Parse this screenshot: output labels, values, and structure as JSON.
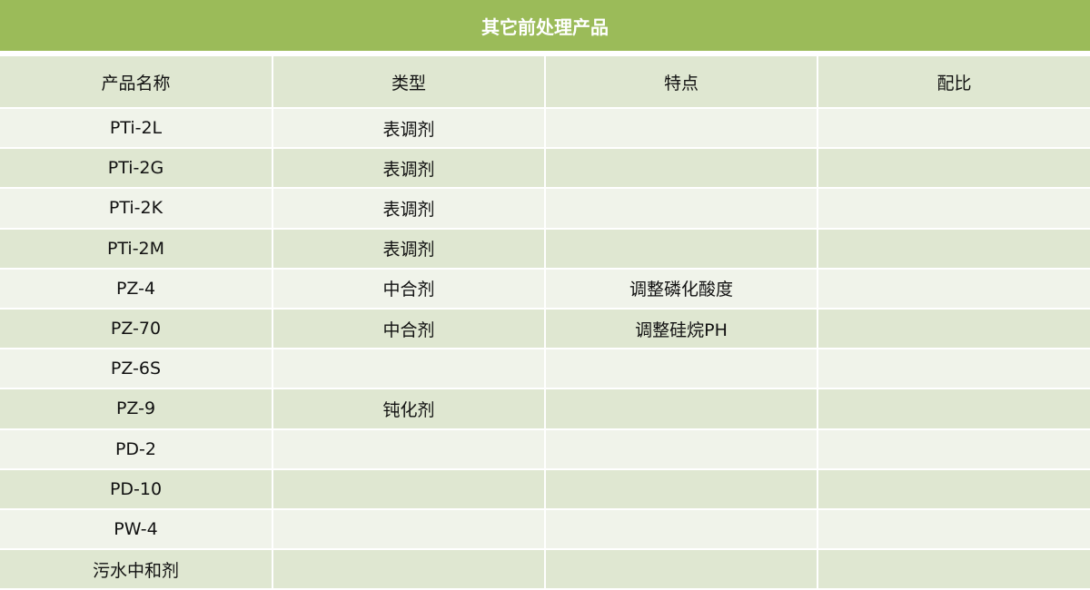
{
  "title": "其它前处理产品",
  "colors": {
    "title_bg": "#9bbb59",
    "header_bg": "#dfe7d1",
    "row_light": "#f0f3ea",
    "row_dark": "#dfe7d1"
  },
  "columns": [
    "产品名称",
    "类型",
    "特点",
    "配比"
  ],
  "rows": [
    [
      "PTi-2L",
      "表调剂",
      "",
      ""
    ],
    [
      "PTi-2G",
      "表调剂",
      "",
      ""
    ],
    [
      "PTi-2K",
      "表调剂",
      "",
      ""
    ],
    [
      "PTi-2M",
      "表调剂",
      "",
      ""
    ],
    [
      "PZ-4",
      "中合剂",
      "调整磷化酸度",
      ""
    ],
    [
      "PZ-70",
      "中合剂",
      "调整硅烷PH",
      ""
    ],
    [
      "PZ-6S",
      "",
      "",
      ""
    ],
    [
      "PZ-9",
      "钝化剂",
      "",
      ""
    ],
    [
      "PD-2",
      "",
      "",
      ""
    ],
    [
      "PD-10",
      "",
      "",
      ""
    ],
    [
      "PW-4",
      "",
      "",
      ""
    ],
    [
      "污水中和剂",
      "",
      "",
      ""
    ]
  ]
}
